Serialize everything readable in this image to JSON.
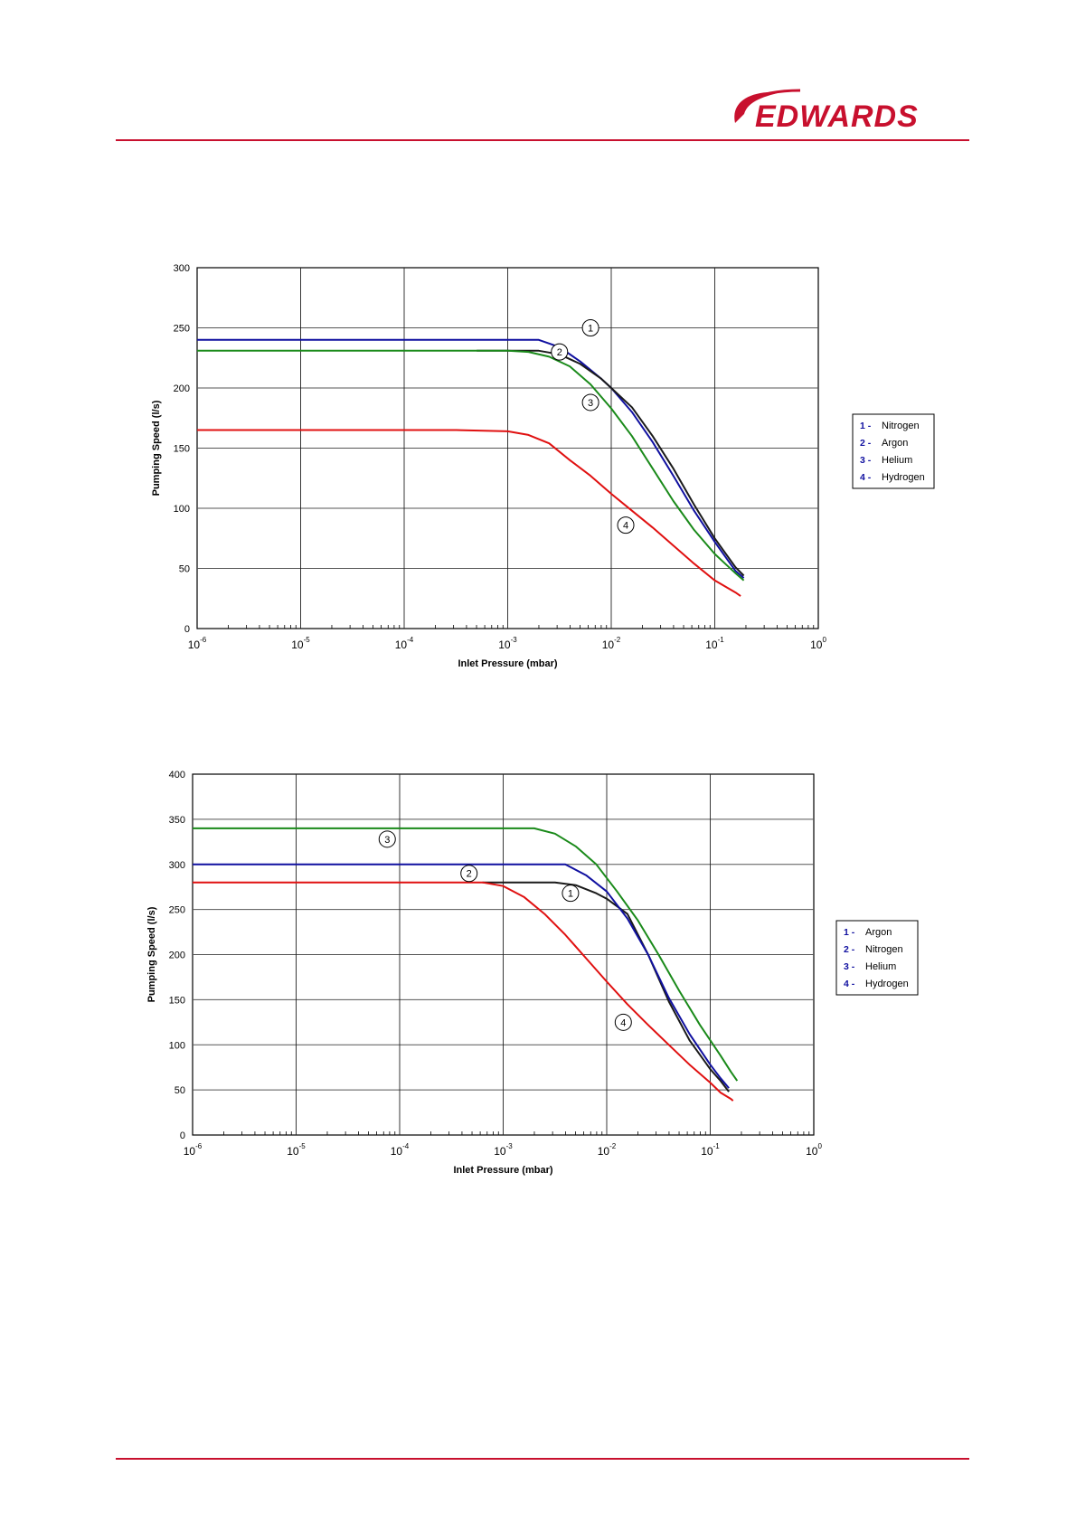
{
  "header": {
    "brand": "EDWARDS",
    "accent": "#c8102e"
  },
  "colors": {
    "Nitrogen": "#1a1a1a",
    "Argon": "#1010a0",
    "Helium": "#1a8a1a",
    "Hydrogen": "#e01010"
  },
  "chart_data": [
    {
      "type": "line",
      "title": "",
      "xlabel": "Inlet Pressure (mbar)",
      "ylabel": "Pumping Speed (l/s)",
      "xscale": "log",
      "xlim": [
        -6,
        0
      ],
      "ylim": [
        0,
        300
      ],
      "yticks": [
        0,
        50,
        100,
        150,
        200,
        250,
        300
      ],
      "xticks": [
        {
          "base": "10",
          "exp": "-6"
        },
        {
          "base": "10",
          "exp": "-5"
        },
        {
          "base": "10",
          "exp": "-4"
        },
        {
          "base": "10",
          "exp": "-3"
        },
        {
          "base": "10",
          "exp": "-2"
        },
        {
          "base": "10",
          "exp": "-1"
        },
        {
          "base": "10",
          "exp": "0"
        }
      ],
      "legend": [
        {
          "num": "1 -",
          "name": "Nitrogen"
        },
        {
          "num": "2 -",
          "name": "Argon"
        },
        {
          "num": "3 -",
          "name": "Helium"
        },
        {
          "num": "4 -",
          "name": "Hydrogen"
        }
      ],
      "legend_position": "right",
      "series": [
        {
          "id": "1",
          "name": "Nitrogen",
          "color": "#1010a0",
          "points": [
            [
              -6,
              240
            ],
            [
              -3,
              240
            ],
            [
              -2.7,
              240
            ],
            [
              -2.5,
              234
            ],
            [
              -2.3,
              222
            ],
            [
              -2.1,
              208
            ],
            [
              -2,
              200
            ],
            [
              -1.8,
              180
            ],
            [
              -1.6,
              155
            ],
            [
              -1.4,
              127
            ],
            [
              -1.2,
              98
            ],
            [
              -1,
              72
            ],
            [
              -0.9,
              60
            ],
            [
              -0.8,
              48
            ],
            [
              -0.72,
              42
            ]
          ]
        },
        {
          "id": "2",
          "name": "Argon",
          "color": "#1a1a1a",
          "points": [
            [
              -3.3,
              231
            ],
            [
              -2.7,
              231
            ],
            [
              -2.5,
              228
            ],
            [
              -2.3,
              220
            ],
            [
              -2.1,
              208
            ],
            [
              -2,
              200
            ],
            [
              -1.8,
              184
            ],
            [
              -1.6,
              160
            ],
            [
              -1.4,
              133
            ],
            [
              -1.2,
              103
            ],
            [
              -1,
              75
            ],
            [
              -0.9,
              63
            ],
            [
              -0.8,
              51
            ],
            [
              -0.72,
              44
            ]
          ]
        },
        {
          "id": "3",
          "name": "Helium",
          "color": "#1a8a1a",
          "points": [
            [
              -6,
              231
            ],
            [
              -3,
              231
            ],
            [
              -2.8,
              230
            ],
            [
              -2.6,
              226
            ],
            [
              -2.4,
              218
            ],
            [
              -2.2,
              203
            ],
            [
              -2,
              183
            ],
            [
              -1.8,
              160
            ],
            [
              -1.6,
              133
            ],
            [
              -1.4,
              106
            ],
            [
              -1.2,
              82
            ],
            [
              -1,
              62
            ],
            [
              -0.9,
              54
            ],
            [
              -0.8,
              46
            ],
            [
              -0.72,
              40
            ]
          ]
        },
        {
          "id": "4",
          "name": "Hydrogen",
          "color": "#e01010",
          "points": [
            [
              -6,
              165
            ],
            [
              -4,
              165
            ],
            [
              -3.5,
              165
            ],
            [
              -3,
              164
            ],
            [
              -2.8,
              161
            ],
            [
              -2.6,
              154
            ],
            [
              -2.4,
              140
            ],
            [
              -2.2,
              127
            ],
            [
              -2,
              112
            ],
            [
              -1.8,
              98
            ],
            [
              -1.6,
              84
            ],
            [
              -1.4,
              69
            ],
            [
              -1.2,
              54
            ],
            [
              -1,
              40
            ],
            [
              -0.8,
              30
            ],
            [
              -0.75,
              27
            ]
          ]
        }
      ],
      "callouts": [
        {
          "label": "1",
          "x": -2.2,
          "y": 250
        },
        {
          "label": "2",
          "x": -2.5,
          "y": 230
        },
        {
          "label": "3",
          "x": -2.2,
          "y": 188
        },
        {
          "label": "4",
          "x": -1.86,
          "y": 86
        }
      ]
    },
    {
      "type": "line",
      "title": "",
      "xlabel": "Inlet Pressure (mbar)",
      "ylabel": "Pumping Speed (l/s)",
      "xscale": "log",
      "xlim": [
        -6,
        0
      ],
      "ylim": [
        0,
        400
      ],
      "yticks": [
        0,
        50,
        100,
        150,
        200,
        250,
        300,
        350,
        400
      ],
      "xticks": [
        {
          "base": "10",
          "exp": "-6"
        },
        {
          "base": "10",
          "exp": "-5"
        },
        {
          "base": "10",
          "exp": "-4"
        },
        {
          "base": "10",
          "exp": "-3"
        },
        {
          "base": "10",
          "exp": "-2"
        },
        {
          "base": "10",
          "exp": "-1"
        },
        {
          "base": "10",
          "exp": "0"
        }
      ],
      "legend": [
        {
          "num": "1 -",
          "name": "Argon"
        },
        {
          "num": "2 -",
          "name": "Nitrogen"
        },
        {
          "num": "3 -",
          "name": "Helium"
        },
        {
          "num": "4 -",
          "name": "Hydrogen"
        }
      ],
      "legend_position": "right",
      "series": [
        {
          "id": "1",
          "name": "Argon",
          "color": "#1a1a1a",
          "points": [
            [
              -3.2,
              280
            ],
            [
              -2.5,
              280
            ],
            [
              -2.3,
              277
            ],
            [
              -2.1,
              268
            ],
            [
              -2,
              262
            ],
            [
              -1.8,
              245
            ],
            [
              -1.6,
              200
            ],
            [
              -1.4,
              148
            ],
            [
              -1.2,
              105
            ],
            [
              -1,
              73
            ],
            [
              -0.9,
              60
            ],
            [
              -0.82,
              48
            ]
          ]
        },
        {
          "id": "2",
          "name": "Nitrogen",
          "color": "#1010a0",
          "points": [
            [
              -6,
              300
            ],
            [
              -3,
              300
            ],
            [
              -2.4,
              300
            ],
            [
              -2.2,
              288
            ],
            [
              -2,
              270
            ],
            [
              -1.8,
              240
            ],
            [
              -1.6,
              200
            ],
            [
              -1.4,
              152
            ],
            [
              -1.2,
              112
            ],
            [
              -1,
              78
            ],
            [
              -0.9,
              63
            ],
            [
              -0.82,
              52
            ]
          ]
        },
        {
          "id": "3",
          "name": "Helium",
          "color": "#1a8a1a",
          "points": [
            [
              -6,
              340
            ],
            [
              -3,
              340
            ],
            [
              -2.7,
              340
            ],
            [
              -2.5,
              334
            ],
            [
              -2.3,
              320
            ],
            [
              -2.1,
              300
            ],
            [
              -1.9,
              270
            ],
            [
              -1.7,
              238
            ],
            [
              -1.5,
              200
            ],
            [
              -1.3,
              160
            ],
            [
              -1.1,
              122
            ],
            [
              -0.9,
              88
            ],
            [
              -0.8,
              70
            ],
            [
              -0.74,
              60
            ]
          ]
        },
        {
          "id": "4",
          "name": "Hydrogen",
          "color": "#e01010",
          "points": [
            [
              -6,
              280
            ],
            [
              -4,
              280
            ],
            [
              -3.2,
              280
            ],
            [
              -3,
              276
            ],
            [
              -2.8,
              264
            ],
            [
              -2.6,
              245
            ],
            [
              -2.4,
              222
            ],
            [
              -2.2,
              196
            ],
            [
              -2,
              170
            ],
            [
              -1.8,
              145
            ],
            [
              -1.6,
              122
            ],
            [
              -1.4,
              100
            ],
            [
              -1.2,
              78
            ],
            [
              -1,
              58
            ],
            [
              -0.9,
              47
            ],
            [
              -0.8,
              40
            ],
            [
              -0.78,
              38
            ]
          ]
        }
      ],
      "callouts": [
        {
          "label": "1",
          "x": -2.35,
          "y": 268
        },
        {
          "label": "2",
          "x": -3.33,
          "y": 290
        },
        {
          "label": "3",
          "x": -4.12,
          "y": 328
        },
        {
          "label": "4",
          "x": -1.84,
          "y": 125
        }
      ]
    }
  ]
}
